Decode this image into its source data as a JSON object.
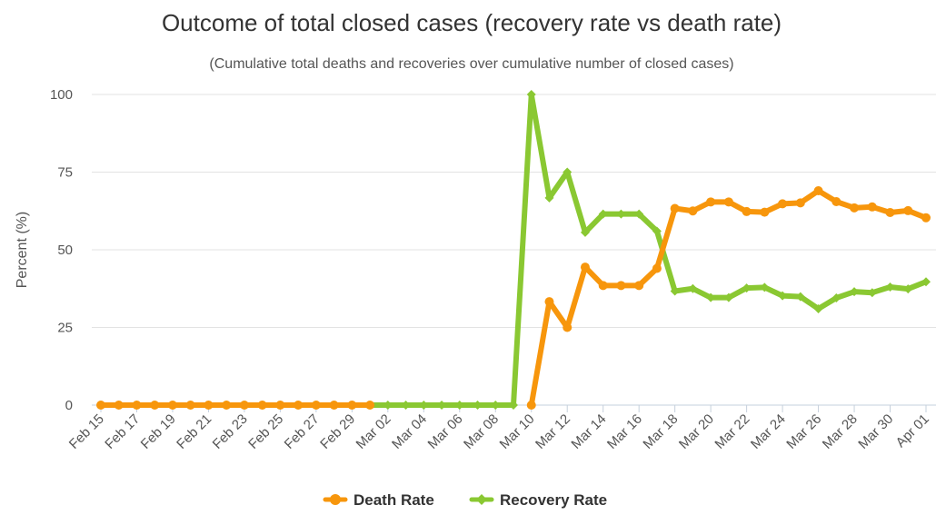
{
  "chart_data": {
    "type": "line",
    "title": "Outcome of total closed cases (recovery rate vs death rate)",
    "subtitle": "(Cumulative total deaths and recoveries over cumulative number of closed cases)",
    "xlabel": "",
    "ylabel": "Percent (%)",
    "ylim": [
      0,
      100
    ],
    "yticks": [
      0,
      25,
      50,
      75,
      100
    ],
    "grid": true,
    "legend_position": "bottom-center",
    "x": [
      "Feb 15",
      "Feb 16",
      "Feb 17",
      "Feb 18",
      "Feb 19",
      "Feb 20",
      "Feb 21",
      "Feb 22",
      "Feb 23",
      "Feb 24",
      "Feb 25",
      "Feb 26",
      "Feb 27",
      "Feb 28",
      "Feb 29",
      "Mar 01",
      "Mar 02",
      "Mar 03",
      "Mar 04",
      "Mar 05",
      "Mar 06",
      "Mar 07",
      "Mar 08",
      "Mar 09",
      "Mar 10",
      "Mar 11",
      "Mar 12",
      "Mar 13",
      "Mar 14",
      "Mar 15",
      "Mar 16",
      "Mar 17",
      "Mar 18",
      "Mar 19",
      "Mar 20",
      "Mar 21",
      "Mar 22",
      "Mar 23",
      "Mar 24",
      "Mar 25",
      "Mar 26",
      "Mar 27",
      "Mar 28",
      "Mar 29",
      "Mar 30",
      "Mar 31",
      "Apr 01"
    ],
    "x_tick_labels": [
      "Feb 15",
      "Feb 17",
      "Feb 19",
      "Feb 21",
      "Feb 23",
      "Feb 25",
      "Feb 27",
      "Feb 29",
      "Mar 02",
      "Mar 04",
      "Mar 06",
      "Mar 08",
      "Mar 10",
      "Mar 12",
      "Mar 14",
      "Mar 16",
      "Mar 18",
      "Mar 20",
      "Mar 22",
      "Mar 24",
      "Mar 26",
      "Mar 28",
      "Mar 30",
      "Apr 01"
    ],
    "series": [
      {
        "name": "Death Rate",
        "color": "#f7960c",
        "marker": "circle",
        "values": [
          0,
          0,
          0,
          0,
          0,
          0,
          0,
          0,
          0,
          0,
          0,
          0,
          0,
          0,
          0,
          0,
          null,
          null,
          null,
          null,
          null,
          null,
          null,
          null,
          0,
          33.3,
          25,
          44.4,
          38.5,
          38.5,
          38.5,
          44,
          63.3,
          62.5,
          65.4,
          65.4,
          62.3,
          62.1,
          64.8,
          65.1,
          69,
          65.5,
          63.5,
          63.8,
          62,
          62.6,
          60.3
        ]
      },
      {
        "name": "Recovery Rate",
        "color": "#8ac832",
        "marker": "diamond",
        "values": [
          0,
          0,
          0,
          0,
          0,
          0,
          0,
          0,
          0,
          0,
          0,
          0,
          0,
          0,
          0,
          0,
          0,
          0,
          0,
          0,
          0,
          0,
          0,
          0,
          100,
          66.7,
          75,
          55.6,
          61.5,
          61.5,
          61.5,
          56,
          36.7,
          37.5,
          34.6,
          34.6,
          37.7,
          37.9,
          35.2,
          34.9,
          31,
          34.5,
          36.5,
          36.2,
          38,
          37.4,
          39.7
        ]
      }
    ]
  }
}
